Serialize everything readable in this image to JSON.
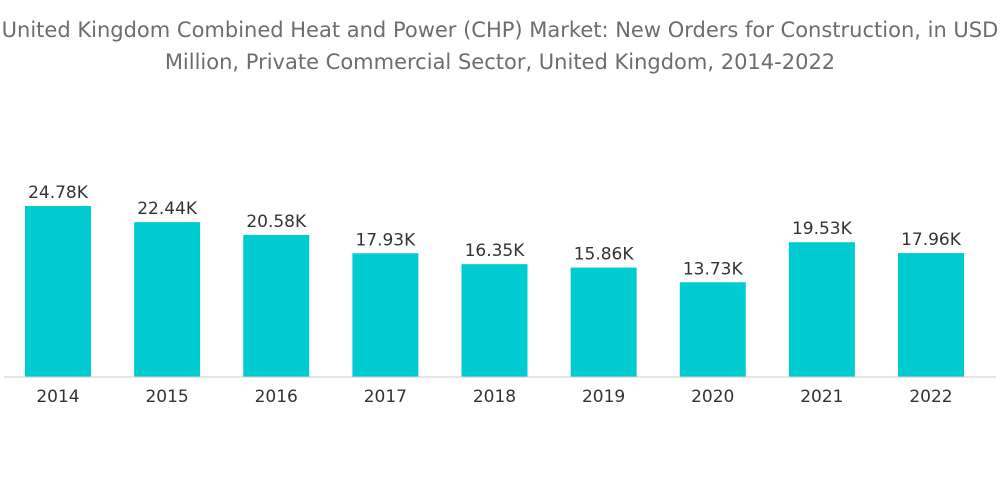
{
  "title": "United Kingdom Combined Heat and Power (CHP) Market: New Orders for Construction, in USD Million, Private Commercial Sector, United Kingdom, 2014-2022",
  "colors": {
    "bar": "#00cbd1",
    "axis": "#cccccc"
  },
  "chart_data": {
    "type": "bar",
    "title": "United Kingdom Combined Heat and Power (CHP) Market: New Orders for Construction, in USD Million, Private Commercial Sector, United Kingdom, 2014-2022",
    "categories": [
      "2014",
      "2015",
      "2016",
      "2017",
      "2018",
      "2019",
      "2020",
      "2021",
      "2022"
    ],
    "values": [
      24.78,
      22.44,
      20.58,
      17.93,
      16.35,
      15.86,
      13.73,
      19.53,
      17.96
    ],
    "value_labels": [
      "24.78K",
      "22.44K",
      "20.58K",
      "17.93K",
      "16.35K",
      "15.86K",
      "13.73K",
      "19.53K",
      "17.96K"
    ],
    "xlabel": "",
    "ylabel": "",
    "ylim": [
      0,
      24.78
    ],
    "grid": false,
    "legend": "none"
  }
}
